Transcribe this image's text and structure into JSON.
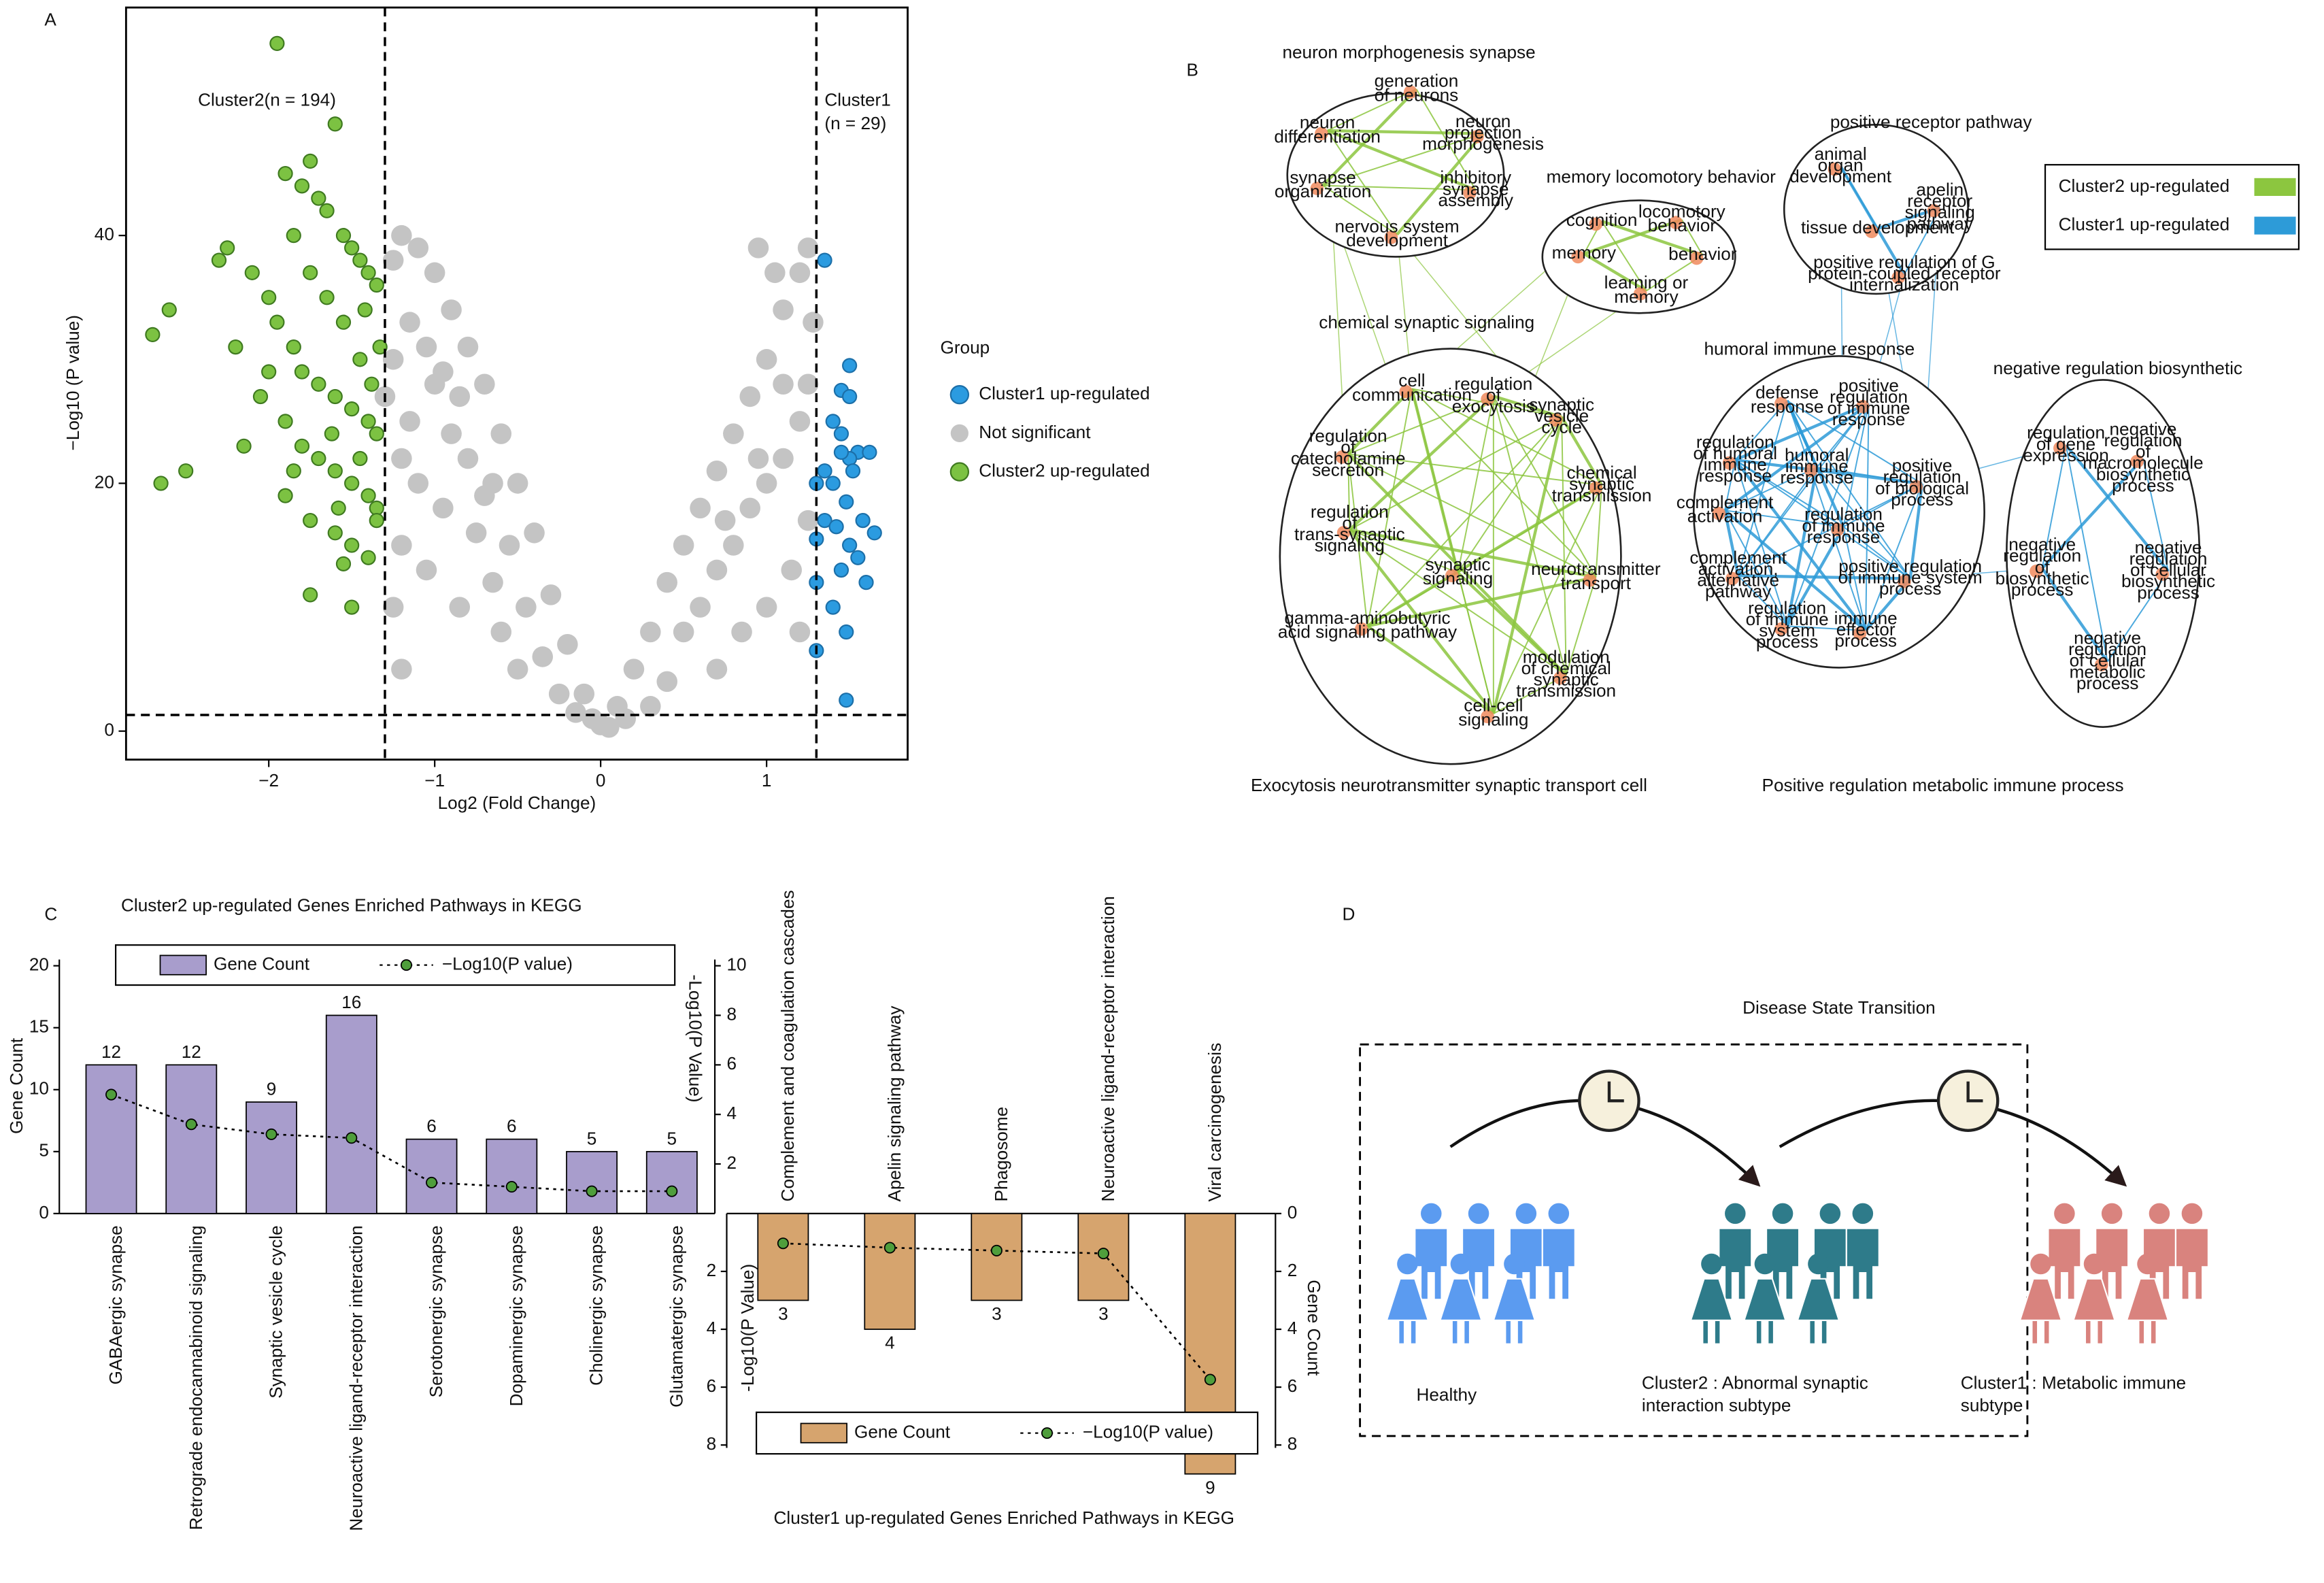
{
  "panel_labels": [
    "A",
    "B",
    "C",
    "D"
  ],
  "chart_data": [
    {
      "type": "scatter",
      "xlabel": "Log2 (Fold Change)",
      "ylabel": "−Log10 (P value)",
      "xlim": [
        -2.86,
        1.85
      ],
      "ylim": [
        -2.3,
        58.4
      ],
      "xticks": [
        {
          "value": -2,
          "label": "−2"
        },
        {
          "value": -1,
          "label": "−1"
        },
        0,
        1
      ],
      "yticks": [
        0,
        20,
        40
      ],
      "thresholds_x": [
        -1.3,
        1.3
      ],
      "threshold_y": 1.3,
      "annotations": [
        "Cluster2(n = 194)",
        "Cluster1",
        "(n = 29)"
      ],
      "legend_title": "Group",
      "series": [
        {
          "name": "Cluster1 up-regulated",
          "color": "#2b9be0",
          "x": [
            1.35,
            1.5,
            1.45,
            1.5,
            1.4,
            1.45,
            1.55,
            1.62,
            1.5,
            1.45,
            1.35,
            1.3,
            1.4,
            1.52,
            1.48,
            1.58,
            1.35,
            1.42,
            1.65,
            1.3,
            1.5,
            1.55,
            1.45,
            1.3,
            1.6,
            1.4,
            1.48,
            1.3,
            1.48
          ],
          "values": [
            38,
            29.5,
            27.5,
            27,
            25,
            24,
            22.5,
            22.5,
            22,
            22.5,
            21,
            20,
            20,
            21,
            18.5,
            17,
            17,
            16.5,
            16,
            15.5,
            15,
            14,
            13,
            12,
            12,
            10,
            8,
            6.5,
            2.5
          ]
        },
        {
          "name": "Not significant",
          "color": "#c4c4c4",
          "x": [
            -1.25,
            -1.2,
            -1.1,
            -1.0,
            -0.9,
            -0.8,
            -0.7,
            -0.6,
            -0.5,
            -0.4,
            -0.3,
            -0.2,
            -0.1,
            0,
            -1.25,
            -1.15,
            -1.1,
            -1.2,
            -1.25,
            -1.0,
            -0.9,
            -0.95,
            -1.05,
            -1.2,
            -0.8,
            -0.75,
            -0.85,
            -0.7,
            -0.65,
            -0.6,
            -0.55,
            -0.45,
            -0.5,
            -0.35,
            -0.25,
            -0.15,
            -1.15,
            -1.05,
            -0.95,
            -1.2,
            -0.85,
            -0.65,
            0.1,
            0.2,
            0.3,
            0.4,
            0.5,
            0.6,
            0.7,
            0.8,
            0.9,
            1.0,
            1.1,
            1.2,
            1.25,
            0.95,
            1.05,
            0.5,
            0.6,
            0.7,
            0.8,
            0.9,
            1.0,
            1.1,
            1.2,
            1.25,
            0.7,
            0.85,
            1.0,
            1.15,
            1.25,
            1.2,
            0.4,
            0.3,
            1.1,
            0.95,
            0.75,
            -1.3,
            1.28,
            0.15,
            -0.05,
            0.05
          ],
          "values": [
            38,
            40,
            39,
            37,
            34,
            31,
            28,
            24,
            20,
            16,
            11,
            7,
            3,
            0.5,
            30,
            25,
            20,
            15,
            10,
            28,
            24,
            18,
            13,
            5,
            22,
            16,
            10,
            19,
            12,
            8,
            15,
            10,
            5,
            6,
            3,
            1.5,
            33,
            31,
            29,
            22,
            27,
            20,
            2,
            5,
            8,
            12,
            15,
            18,
            21,
            24,
            27,
            30,
            34,
            37,
            39,
            39,
            37,
            8,
            10,
            13,
            15,
            18,
            20,
            22,
            25,
            28,
            5,
            8,
            10,
            13,
            17,
            8,
            4,
            2,
            28,
            22,
            17,
            27,
            33,
            1,
            1,
            0.3
          ]
        },
        {
          "name": "Cluster2 up-regulated",
          "color": "#7cc242",
          "edge": "#3f7a20",
          "x": [
            -1.95,
            -1.6,
            -2.7,
            -2.6,
            -2.2,
            -2.65,
            -2.5,
            -2.15,
            -1.75,
            -1.5,
            -1.55,
            -2.3,
            -2.25,
            -2.1,
            -1.9,
            -1.8,
            -1.75,
            -1.7,
            -1.65,
            -1.55,
            -1.5,
            -1.45,
            -1.4,
            -1.35,
            -2.0,
            -1.95,
            -1.85,
            -1.8,
            -1.7,
            -1.6,
            -1.5,
            -1.4,
            -1.35,
            -2.05,
            -1.9,
            -1.8,
            -1.7,
            -1.6,
            -1.5,
            -1.4,
            -1.35,
            -1.9,
            -1.75,
            -1.6,
            -1.5,
            -1.4,
            -1.35,
            -1.45,
            -1.55,
            -1.65,
            -1.75,
            -1.85,
            -2.0,
            -1.85,
            -1.45,
            -1.38,
            -1.62,
            -1.42,
            -1.33,
            -1.58
          ],
          "values": [
            55.5,
            49,
            32,
            34,
            31,
            20,
            21,
            23,
            11,
            10,
            13.5,
            38,
            39,
            37,
            45,
            44,
            46,
            43,
            42,
            40,
            39,
            38,
            37,
            36,
            35,
            33,
            31,
            29,
            28,
            27,
            26,
            25,
            24,
            27,
            25,
            23,
            22,
            21,
            20,
            19,
            18,
            19,
            17,
            16,
            15,
            14,
            17,
            30,
            33,
            35,
            37,
            40,
            29,
            21,
            22,
            28,
            24,
            34,
            31,
            18
          ]
        }
      ]
    },
    {
      "type": "bar_line",
      "title": "Cluster2 up-regulated Genes Enriched Pathways in KEGG",
      "ylabel": "Gene Count",
      "y2label": "-Log10(P Value)",
      "categories": [
        "GABAergic synapse",
        "Retrograde endocannabinoid signaling",
        "Synaptic vesicle cycle",
        "Neuroactive ligand-receptor interaction",
        "Serotonergic synapse",
        "Dopaminergic synapse",
        "Cholinergic synapse",
        "Glutamatergic synapse"
      ],
      "series": [
        {
          "name": "Gene Count",
          "type": "bar",
          "color": "#a89dcc",
          "values": [
            12,
            12,
            9,
            16,
            6,
            6,
            5,
            5
          ]
        },
        {
          "name": "−Log10(P value)",
          "type": "line",
          "axis": "y2",
          "color": "#4f9e3c",
          "values": [
            4.8,
            3.6,
            3.2,
            3.05,
            1.25,
            1.08,
            0.9,
            0.9
          ]
        }
      ],
      "ylim": [
        0,
        20.5
      ],
      "yticks": [
        0,
        5,
        10,
        15,
        20
      ],
      "y2lim": [
        0,
        10.25
      ],
      "y2ticks": [
        2,
        4,
        6,
        8,
        10
      ],
      "inverted": false
    },
    {
      "type": "bar_line",
      "title": "Cluster1 up-regulated Genes Enriched Pathways in KEGG",
      "ylabel": "-Log10(P Value)",
      "y2label": "Gene Count",
      "categories": [
        "Complement and coagulation cascades",
        "Apelin signaling pathway",
        "Phagosome",
        "Neuroactive ligand-receptor interaction",
        "Viral carcinogenesis"
      ],
      "series": [
        {
          "name": "Gene Count",
          "type": "bar",
          "axis": "y2",
          "color": "#d6a46e",
          "values": [
            3,
            4,
            3,
            3,
            9
          ]
        },
        {
          "name": "−Log10(P value)",
          "type": "line",
          "color": "#4f9e3c",
          "values": [
            1.03,
            1.18,
            1.28,
            1.38,
            5.74
          ]
        }
      ],
      "ylim": [
        0,
        8.1
      ],
      "yticks": [
        2,
        4,
        6,
        8
      ],
      "y2lim": [
        0,
        8.1
      ],
      "y2ticks": [
        0,
        2,
        4,
        6,
        8
      ],
      "inverted": true
    }
  ],
  "network": {
    "legend": [
      {
        "label": "Cluster2 up-regulated",
        "color": "#8cc63f"
      },
      {
        "label": "Cluster1 up-regulated",
        "color": "#2d9bd8"
      }
    ],
    "clusters": [
      {
        "title": "neuron morphogenesis synapse",
        "group": 0,
        "nodes": [
          [
            "generation",
            "of neurons"
          ],
          [
            "neuron",
            "projection",
            "morphogenesis"
          ],
          [
            "neuron",
            "differentiation"
          ],
          [
            "synapse",
            "organization"
          ],
          [
            "inhibitory",
            "synapse",
            "assembly"
          ],
          [
            "nervous system",
            "development"
          ]
        ]
      },
      {
        "title": "memory locomotory behavior",
        "group": 0,
        "nodes": [
          [
            "cognition"
          ],
          [
            "locomotory",
            "behavior"
          ],
          [
            "memory"
          ],
          [
            "behavior"
          ],
          [
            "learning or",
            "memory"
          ]
        ]
      },
      {
        "title": "chemical synaptic signaling",
        "group": 0,
        "nodes": [
          [
            "cell",
            "communication"
          ],
          [
            "regulation",
            "of",
            "exocytosis"
          ],
          [
            "synaptic",
            "vesicle",
            "cycle"
          ],
          [
            "regulation",
            "of",
            "catecholamine",
            "secretion"
          ],
          [
            "chemical",
            "synaptic",
            "transmission"
          ],
          [
            "regulation",
            "of",
            "trans-synaptic",
            "signaling"
          ],
          [
            "synaptic",
            "signaling"
          ],
          [
            "neurotransmitter",
            "transport"
          ],
          [
            "gamma-aminobutyric",
            "acid signaling pathway"
          ],
          [
            "modulation",
            "of chemical",
            "synaptic",
            "transmission"
          ],
          [
            "cell-cell",
            "signaling"
          ]
        ]
      },
      {
        "title": "positive receptor pathway",
        "group": 1,
        "nodes": [
          [
            "animal",
            "organ",
            "development"
          ],
          [
            "apelin",
            "receptor",
            "signaling",
            "pathway"
          ],
          [
            "tissue development"
          ],
          [
            "positive regulation of G",
            "protein-coupled receptor",
            "internalization"
          ]
        ]
      },
      {
        "title": "humoral immune response",
        "group": 1,
        "nodes": [
          [
            "defense",
            "response"
          ],
          [
            "positive",
            "regulation",
            "of immune",
            "response"
          ],
          [
            "regulation",
            "of humoral",
            "immune",
            "response"
          ],
          [
            "humoral",
            "immune",
            "response"
          ],
          [
            "positive",
            "regulation",
            "of biological",
            "process"
          ],
          [
            "complement",
            "activation"
          ],
          [
            "regulation",
            "of immune",
            "response"
          ],
          [
            "complement",
            "activation,",
            "alternative",
            "pathway"
          ],
          [
            "positive regulation",
            "of immune system",
            "process"
          ],
          [
            "regulation",
            "of immune",
            "system",
            "process"
          ],
          [
            "immune",
            "effector",
            "process"
          ]
        ]
      },
      {
        "title": "negative regulation biosynthetic",
        "group": 1,
        "nodes": [
          [
            "regulation",
            "of gene",
            "expression"
          ],
          [
            "negative",
            "regulation",
            "of",
            "macromolecule",
            "biosynthetic",
            "process"
          ],
          [
            "negative",
            "regulation",
            "of",
            "biosynthetic",
            "process"
          ],
          [
            "negative",
            "regulation",
            "of cellular",
            "biosynthetic",
            "process"
          ],
          [
            "negative",
            "regulation",
            "of cellular",
            "metabolic",
            "process"
          ]
        ]
      }
    ],
    "summaries": [
      "Exocytosis neurotransmitter synaptic transport cell",
      "Positive regulation metabolic immune process"
    ]
  },
  "diagram": {
    "title": "Disease State Transition",
    "groups": [
      {
        "label": [
          "Healthy"
        ],
        "color": "#5b9bf0"
      },
      {
        "label": [
          "Cluster2 : Abnormal synaptic",
          "interaction subtype"
        ],
        "color": "#2e7b8a"
      },
      {
        "label": [
          "Cluster1 : Metabolic immune",
          "subtype"
        ],
        "color": "#d9837e"
      }
    ]
  }
}
